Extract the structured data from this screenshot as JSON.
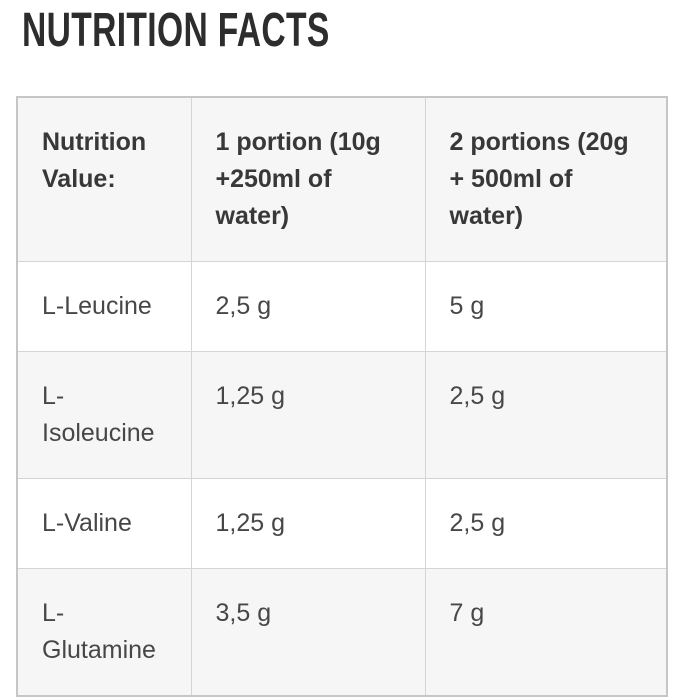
{
  "page": {
    "title": "NUTRITION FACTS"
  },
  "table": {
    "columns": [
      "Nutrition Value:",
      "1 portion (10g +250ml of water)",
      "2 portions (20g + 500ml of water)"
    ],
    "rows": [
      {
        "name": "L-Leucine",
        "portion1": "2,5 g",
        "portion2": "5 g"
      },
      {
        "name": "L-Isoleucine",
        "portion1": "1,25 g",
        "portion2": "2,5 g"
      },
      {
        "name": "L-Valine",
        "portion1": "1,25 g",
        "portion2": "2,5 g"
      },
      {
        "name": "L-Glutamine",
        "portion1": "3,5 g",
        "portion2": "7 g"
      }
    ]
  },
  "colors": {
    "heading_text": "#2d2d2d",
    "header_text": "#383838",
    "body_text": "#474747",
    "stripe_background": "#f6f6f6",
    "row_background": "#ffffff",
    "grid_border": "#d4d4d4",
    "outer_border": "#c6c6c6",
    "page_background": "#ffffff"
  }
}
